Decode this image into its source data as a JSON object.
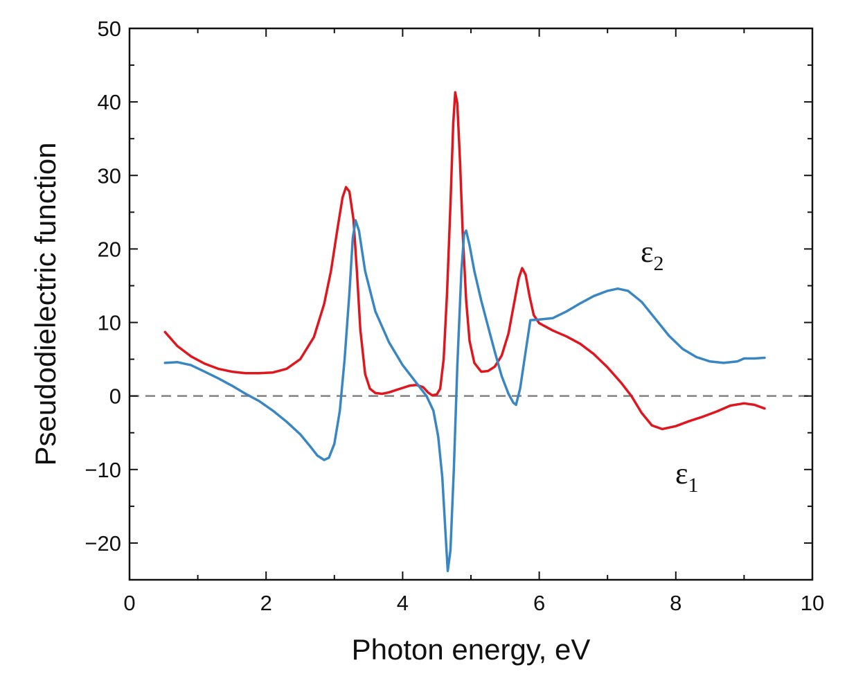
{
  "colors": {
    "eps1": "#e0161e",
    "eps2": "#3a86c2",
    "zero_line": "#808080",
    "axis": "#111111"
  },
  "chart_data": {
    "type": "line",
    "title": "",
    "xlabel": "Photon energy, eV",
    "ylabel": "Pseudodielectric function",
    "xlim": [
      0,
      10
    ],
    "ylim": [
      -25,
      50
    ],
    "x_ticks": [
      0,
      2,
      4,
      6,
      8,
      10
    ],
    "x_tick_labels": [
      "0",
      "2",
      "4",
      "6",
      "8",
      "10"
    ],
    "y_ticks": [
      -20,
      -10,
      0,
      10,
      20,
      30,
      40,
      50
    ],
    "y_tick_labels": [
      "−20",
      "−10",
      "0",
      "10",
      "20",
      "30",
      "40",
      "50"
    ],
    "reference_line": {
      "y": 0,
      "style": "dashed"
    },
    "series": [
      {
        "name": "ε₁",
        "symbol": "ε",
        "subscript": "1",
        "color": "#e0161e",
        "points": [
          [
            0.52,
            8.7
          ],
          [
            0.7,
            6.8
          ],
          [
            0.9,
            5.4
          ],
          [
            1.1,
            4.4
          ],
          [
            1.3,
            3.7
          ],
          [
            1.5,
            3.3
          ],
          [
            1.7,
            3.1
          ],
          [
            1.9,
            3.1
          ],
          [
            2.1,
            3.2
          ],
          [
            2.3,
            3.7
          ],
          [
            2.5,
            5.0
          ],
          [
            2.7,
            8.0
          ],
          [
            2.85,
            12.5
          ],
          [
            2.95,
            17.0
          ],
          [
            3.05,
            23.0
          ],
          [
            3.12,
            27.0
          ],
          [
            3.17,
            28.4
          ],
          [
            3.22,
            27.8
          ],
          [
            3.28,
            24.0
          ],
          [
            3.33,
            17.0
          ],
          [
            3.38,
            9.0
          ],
          [
            3.45,
            3.0
          ],
          [
            3.52,
            1.0
          ],
          [
            3.6,
            0.4
          ],
          [
            3.7,
            0.3
          ],
          [
            3.8,
            0.5
          ],
          [
            3.9,
            0.8
          ],
          [
            4.0,
            1.1
          ],
          [
            4.1,
            1.4
          ],
          [
            4.2,
            1.5
          ],
          [
            4.3,
            1.2
          ],
          [
            4.37,
            0.5
          ],
          [
            4.43,
            0.1
          ],
          [
            4.5,
            0.2
          ],
          [
            4.55,
            1.0
          ],
          [
            4.6,
            5.0
          ],
          [
            4.65,
            14.0
          ],
          [
            4.7,
            26.0
          ],
          [
            4.74,
            37.0
          ],
          [
            4.77,
            41.3
          ],
          [
            4.8,
            39.8
          ],
          [
            4.84,
            32.0
          ],
          [
            4.88,
            22.0
          ],
          [
            4.93,
            13.0
          ],
          [
            4.98,
            7.5
          ],
          [
            5.05,
            4.5
          ],
          [
            5.15,
            3.3
          ],
          [
            5.25,
            3.4
          ],
          [
            5.35,
            4.0
          ],
          [
            5.45,
            5.5
          ],
          [
            5.55,
            8.5
          ],
          [
            5.63,
            12.5
          ],
          [
            5.7,
            16.0
          ],
          [
            5.75,
            17.4
          ],
          [
            5.8,
            16.5
          ],
          [
            5.86,
            13.5
          ],
          [
            5.92,
            11.0
          ],
          [
            6.0,
            9.9
          ],
          [
            6.2,
            8.9
          ],
          [
            6.4,
            8.1
          ],
          [
            6.6,
            7.1
          ],
          [
            6.8,
            5.7
          ],
          [
            7.0,
            3.9
          ],
          [
            7.2,
            1.8
          ],
          [
            7.35,
            0.0
          ],
          [
            7.5,
            -2.3
          ],
          [
            7.65,
            -4.0
          ],
          [
            7.8,
            -4.5
          ],
          [
            8.0,
            -4.1
          ],
          [
            8.2,
            -3.4
          ],
          [
            8.4,
            -2.8
          ],
          [
            8.6,
            -2.1
          ],
          [
            8.8,
            -1.3
          ],
          [
            9.0,
            -1.0
          ],
          [
            9.15,
            -1.2
          ],
          [
            9.3,
            -1.7
          ]
        ]
      },
      {
        "name": "ε₂",
        "symbol": "ε",
        "subscript": "2",
        "color": "#3a86c2",
        "points": [
          [
            0.52,
            4.5
          ],
          [
            0.7,
            4.6
          ],
          [
            0.9,
            4.2
          ],
          [
            1.1,
            3.3
          ],
          [
            1.3,
            2.4
          ],
          [
            1.5,
            1.4
          ],
          [
            1.7,
            0.3
          ],
          [
            1.9,
            -0.7
          ],
          [
            2.1,
            -2.0
          ],
          [
            2.3,
            -3.5
          ],
          [
            2.5,
            -5.2
          ],
          [
            2.65,
            -6.9
          ],
          [
            2.75,
            -8.1
          ],
          [
            2.85,
            -8.7
          ],
          [
            2.92,
            -8.4
          ],
          [
            3.0,
            -6.5
          ],
          [
            3.08,
            -2.0
          ],
          [
            3.15,
            5.0
          ],
          [
            3.22,
            14.0
          ],
          [
            3.27,
            21.5
          ],
          [
            3.31,
            23.9
          ],
          [
            3.36,
            22.5
          ],
          [
            3.45,
            17.0
          ],
          [
            3.6,
            11.5
          ],
          [
            3.8,
            7.3
          ],
          [
            4.0,
            4.2
          ],
          [
            4.2,
            1.8
          ],
          [
            4.35,
            0.0
          ],
          [
            4.45,
            -2.0
          ],
          [
            4.52,
            -5.5
          ],
          [
            4.58,
            -11.0
          ],
          [
            4.63,
            -19.0
          ],
          [
            4.66,
            -23.8
          ],
          [
            4.7,
            -21.0
          ],
          [
            4.75,
            -10.0
          ],
          [
            4.8,
            4.0
          ],
          [
            4.86,
            17.0
          ],
          [
            4.9,
            22.0
          ],
          [
            4.93,
            22.5
          ],
          [
            4.98,
            20.5
          ],
          [
            5.05,
            17.0
          ],
          [
            5.15,
            13.0
          ],
          [
            5.25,
            9.5
          ],
          [
            5.35,
            6.0
          ],
          [
            5.45,
            2.7
          ],
          [
            5.55,
            0.3
          ],
          [
            5.62,
            -0.9
          ],
          [
            5.66,
            -1.2
          ],
          [
            5.72,
            1.0
          ],
          [
            5.8,
            6.0
          ],
          [
            5.87,
            10.3
          ],
          [
            6.0,
            10.4
          ],
          [
            6.2,
            10.6
          ],
          [
            6.4,
            11.5
          ],
          [
            6.6,
            12.6
          ],
          [
            6.8,
            13.6
          ],
          [
            7.0,
            14.3
          ],
          [
            7.15,
            14.6
          ],
          [
            7.3,
            14.3
          ],
          [
            7.5,
            12.8
          ],
          [
            7.7,
            10.5
          ],
          [
            7.9,
            8.2
          ],
          [
            8.1,
            6.4
          ],
          [
            8.3,
            5.3
          ],
          [
            8.5,
            4.7
          ],
          [
            8.7,
            4.5
          ],
          [
            8.9,
            4.7
          ],
          [
            9.0,
            5.1
          ],
          [
            9.15,
            5.1
          ],
          [
            9.3,
            5.2
          ]
        ]
      }
    ]
  }
}
